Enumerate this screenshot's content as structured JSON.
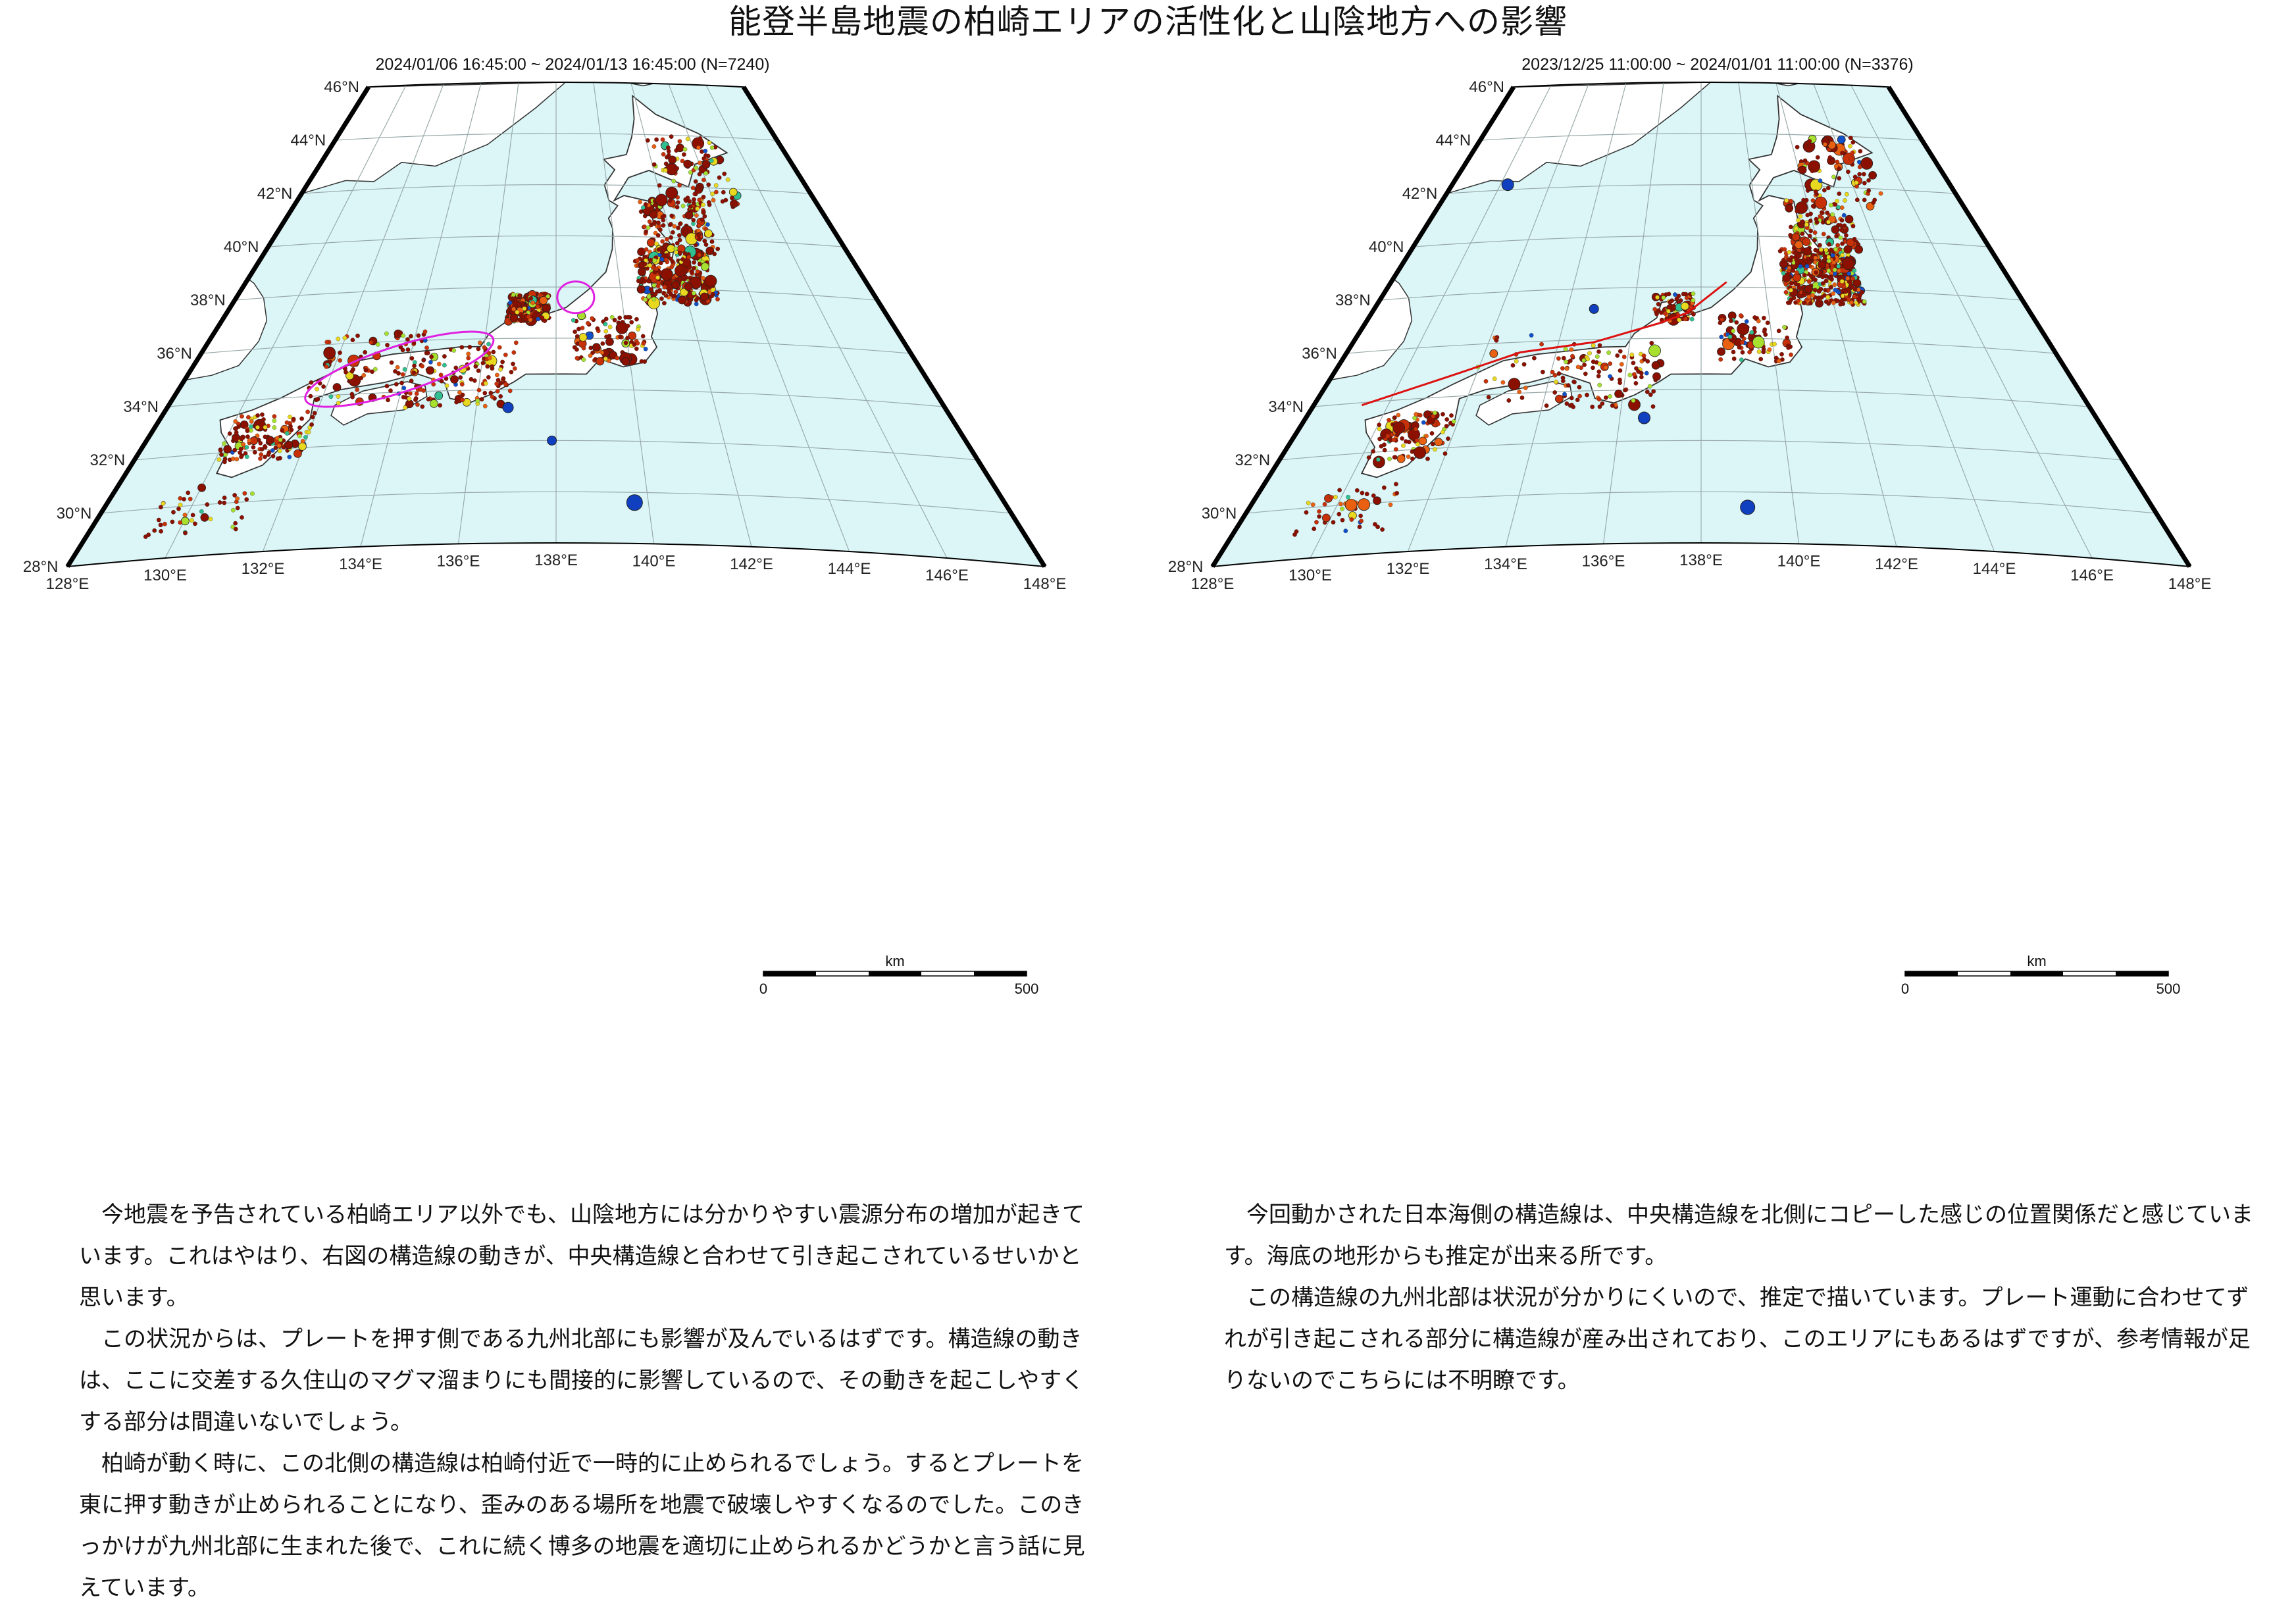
{
  "page": {
    "title": "能登半島地震の柏崎エリアの活性化と山陰地方への影響"
  },
  "maps": [
    {
      "id": "left",
      "caption": "2024/01/06 16:45:00 ~ 2024/01/13 16:45:00 (N=7240)",
      "annotation": "magenta ellipses marking Kashiwazaki area and San'in region",
      "annotation_color": "#e020e0"
    },
    {
      "id": "right",
      "caption": "2023/12/25 11:00:00 ~ 2024/01/01 11:00:00 (N=3376)",
      "annotation": "red line marking Sea of Japan side tectonic line",
      "annotation_color": "#dd1111"
    }
  ],
  "axes": {
    "lat_labels": [
      "46°N",
      "44°N",
      "42°N",
      "40°N",
      "38°N",
      "36°N",
      "34°N",
      "32°N",
      "30°N",
      "28°N"
    ],
    "lon_labels": [
      "128°E",
      "130°E",
      "132°E",
      "134°E",
      "136°E",
      "138°E",
      "140°E",
      "142°E",
      "144°E",
      "146°E",
      "148°E"
    ]
  },
  "scale_bar": {
    "unit": "km",
    "min": "0",
    "max": "500"
  },
  "colors": {
    "sea": "#dcf6f8",
    "land": "#ffffff",
    "shallow": "#8b0000",
    "mid": "#e8e820",
    "deep": "#1040c0"
  },
  "text_left": [
    "今地震を予告されている柏崎エリア以外でも、山陰地方には分かりやすい震源分布の増加が起きています。これはやはり、右図の構造線の動きが、中央構造線と合わせて引き起こされているせいかと思います。",
    "この状況からは、プレートを押す側である九州北部にも影響が及んでいるはずです。構造線の動きは、ここに交差する久住山のマグマ溜まりにも間接的に影響しているので、その動きを起こしやすくする部分は間違いないでしょう。",
    "柏崎が動く時に、この北側の構造線は柏崎付近で一時的に止められるでしょう。するとプレートを東に押す動きが止められることになり、歪みのある場所を地震で破壊しやすくなるのでした。このきっかけが九州北部に生まれた後で、これに続く博多の地震を適切に止められるかどうかと言う話に見えています。"
  ],
  "text_right": [
    "今回動かされた日本海側の構造線は、中央構造線を北側にコピーした感じの位置関係だと感じています。海底の地形からも推定が出来る所です。",
    "この構造線の九州北部は状況が分かりにくいので、推定で描いています。プレート運動に合わせてずれが引き起こされる部分に構造線が産み出されており、このエリアにもあるはずですが、参考情報が足りないのでこちらには不明瞭です。"
  ]
}
